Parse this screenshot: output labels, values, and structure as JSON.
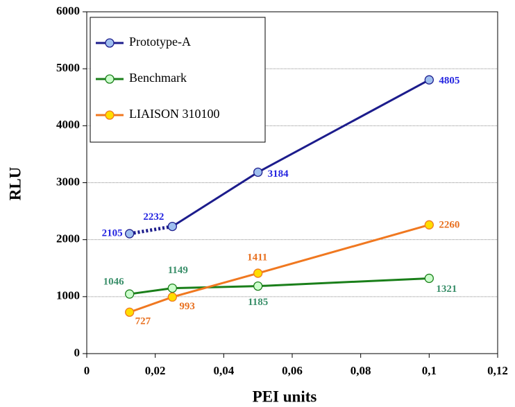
{
  "chart_data": {
    "type": "line",
    "x_label": "PEI units",
    "y_label": "RLU",
    "xlim": [
      0,
      0.12
    ],
    "xticks": [
      0,
      {
        "value": 0.02,
        "label": "0,02"
      },
      {
        "value": 0.04,
        "label": "0,04"
      },
      {
        "value": 0.06,
        "label": "0,06"
      },
      {
        "value": 0.08,
        "label": "0,08"
      },
      {
        "value": 0.1,
        "label": "0,1"
      },
      {
        "value": 0.12,
        "label": "0,12"
      }
    ],
    "ylim": [
      0,
      6000
    ],
    "yticks": [
      0,
      1000,
      2000,
      3000,
      4000,
      5000,
      6000
    ],
    "grid": true,
    "legend": "upper left",
    "series": [
      {
        "name": "Prototype-A",
        "color": "#1c1c8c",
        "marker_color": "#9fbfef",
        "label_color": "#2424e0",
        "dotted_segments": [
          0
        ],
        "x": [
          0.0125,
          0.025,
          0.05,
          0.1
        ],
        "values": [
          2105,
          2232,
          3184,
          4805
        ]
      },
      {
        "name": "Benchmark",
        "color": "#1a7f1a",
        "marker_color": "#ccffcc",
        "label_color": "#3a8f6a",
        "x": [
          0.0125,
          0.025,
          0.05,
          0.1
        ],
        "values": [
          1046,
          1149,
          1185,
          1321
        ]
      },
      {
        "name": "LIAISON 310100",
        "color": "#f07820",
        "marker_color": "#ffdd00",
        "label_color": "#e87020",
        "x": [
          0.0125,
          0.025,
          0.05,
          0.1
        ],
        "values": [
          727,
          993,
          1411,
          2260
        ]
      }
    ]
  }
}
